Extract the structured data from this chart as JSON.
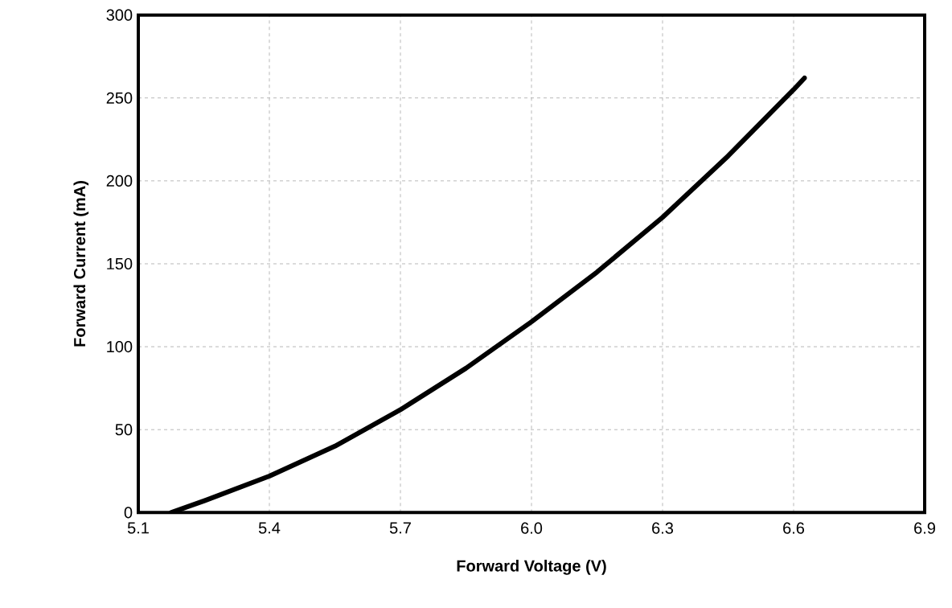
{
  "chart_data": {
    "type": "line",
    "xlabel": "Forward Voltage (V)",
    "ylabel": "Forward Current (mA)",
    "xlim": [
      5.1,
      6.9
    ],
    "ylim": [
      0,
      300
    ],
    "xticks": [
      5.1,
      5.4,
      5.7,
      {
        "value": 6.0,
        "label": "6.0"
      },
      6.3,
      6.6,
      6.9
    ],
    "yticks": [
      0,
      50,
      100,
      150,
      200,
      250,
      300
    ],
    "grid": true,
    "marker": "none",
    "line_style": "solid",
    "series": [
      {
        "color": "#000000",
        "x": [
          5.175,
          5.25,
          5.4,
          5.55,
          5.7,
          5.85,
          6.0,
          6.15,
          6.3,
          6.45,
          6.6,
          6.625
        ],
        "values": [
          0,
          7,
          22,
          40,
          62,
          87,
          115,
          145,
          178,
          215,
          255,
          262
        ]
      }
    ]
  }
}
